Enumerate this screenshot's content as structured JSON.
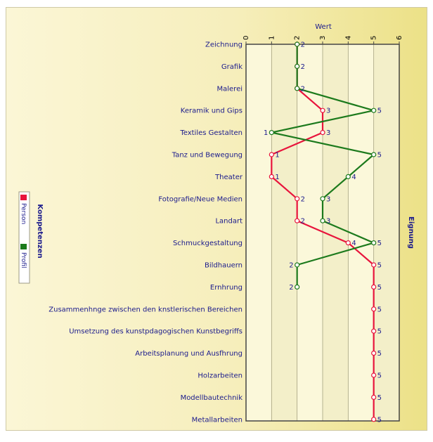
{
  "chart_data": {
    "type": "line",
    "orientation": "horizontal",
    "x_axis_title": "Wert",
    "categories_axis_title": "Kompetenzen",
    "right_axis_title": "Eignung",
    "xlim": [
      0,
      6
    ],
    "x_ticks": [
      0,
      1,
      2,
      3,
      4,
      5,
      6
    ],
    "grid": true,
    "legend_position": "left",
    "categories": [
      "Zeichnung",
      "Grafik",
      "Malerei",
      "Keramik und Gips",
      "Textiles Gestalten",
      "Tanz und Bewegung",
      "Theater",
      "Fotografie/Neue Medien",
      "Landart",
      "Schmuckgestaltung",
      "Bildhauern",
      "Ernhrung",
      "Zusammenhnge zwischen den knstlerischen Bereichen",
      "Umsetzung des kunstpdagogischen Kunstbegriffs",
      "Arbeitsplanung und Ausfhrung",
      "Holzarbeiten",
      "Modellbautechnik",
      "Metallarbeiten"
    ],
    "series": [
      {
        "name": "Person",
        "color": "#e8143c",
        "values": [
          2,
          2,
          2,
          3,
          3,
          1,
          1,
          2,
          2,
          4,
          5,
          5,
          5,
          5,
          5,
          5,
          5,
          5
        ]
      },
      {
        "name": "Profil",
        "color": "#1c7a1c",
        "values": [
          2,
          2,
          2,
          5,
          1,
          5,
          4,
          3,
          3,
          5,
          2,
          2,
          null,
          null,
          null,
          null,
          null,
          null
        ]
      }
    ]
  }
}
